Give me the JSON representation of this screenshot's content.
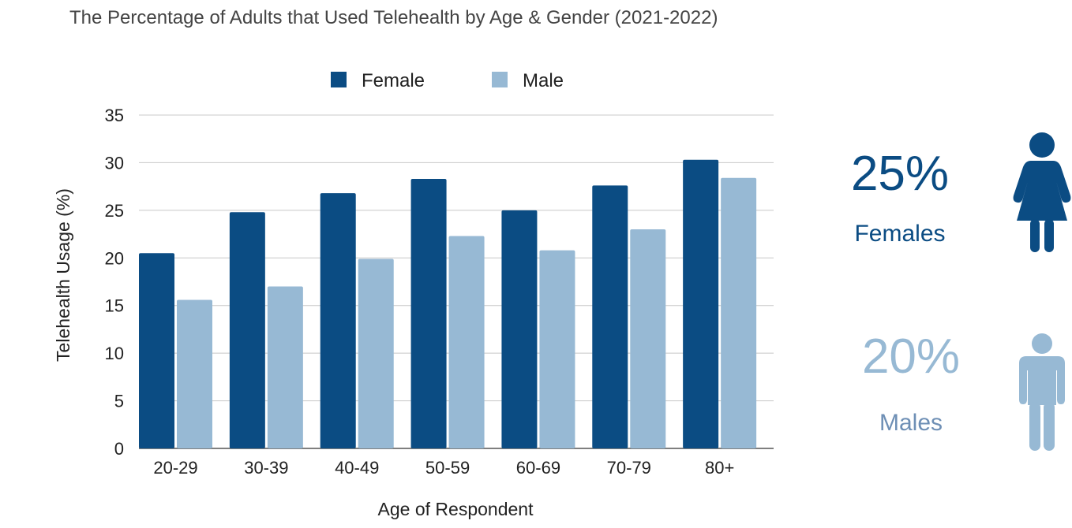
{
  "colors": {
    "female": "#0b4c83",
    "male": "#97b9d4",
    "grid": "#c8c8c8",
    "axis": "#555555",
    "male_label": "#6e8fb5"
  },
  "chart_data": {
    "type": "bar",
    "title": "The Percentage of Adults that Used Telehealth by Age & Gender (2021-2022)",
    "xlabel": "Age of Respondent",
    "ylabel": "Telehealth Usage (%)",
    "ylim": [
      0,
      35
    ],
    "yticks": [
      0,
      5,
      10,
      15,
      20,
      25,
      30,
      35
    ],
    "grid": true,
    "legend_position": "top",
    "categories": [
      "20-29",
      "30-39",
      "40-49",
      "50-59",
      "60-69",
      "70-79",
      "80+"
    ],
    "series": [
      {
        "name": "Female",
        "values": [
          20.5,
          24.8,
          26.8,
          28.3,
          25.0,
          27.6,
          30.3
        ]
      },
      {
        "name": "Male",
        "values": [
          15.6,
          17.0,
          19.9,
          22.3,
          20.8,
          23.0,
          28.4
        ]
      }
    ]
  },
  "stats": {
    "female": {
      "value": "25%",
      "label": "Females",
      "icon": "female-person-icon"
    },
    "male": {
      "value": "20%",
      "label": "Males",
      "icon": "male-person-icon"
    }
  }
}
